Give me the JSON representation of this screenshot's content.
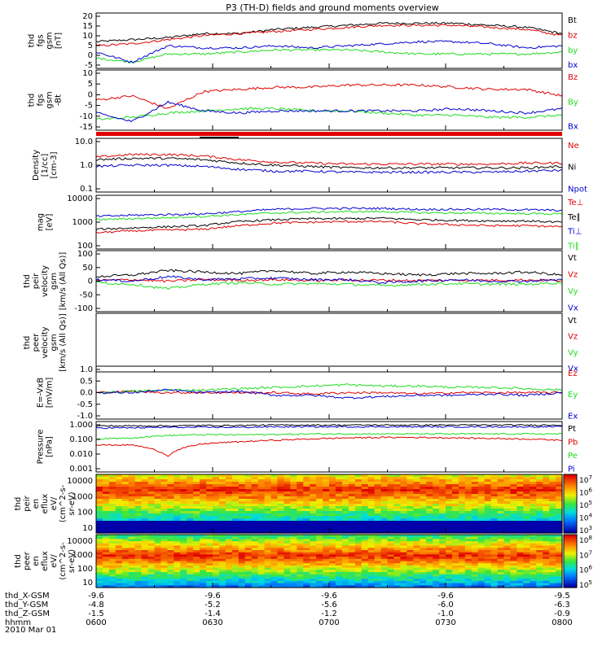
{
  "title": "P3 (TH-D) fields and ground moments overview",
  "date_label": "2010 Mar 01",
  "colors": {
    "black": "#000000",
    "red": "#e00000",
    "green": "#1fdc1f",
    "blue": "#0000d0"
  },
  "chart_data": [
    {
      "type": "line",
      "id": "p1",
      "ylabel": [
        "thd",
        "fgs",
        "gsm",
        "[nT]"
      ],
      "yticks": [
        "20",
        "15",
        "10",
        "5",
        "0",
        "-5"
      ],
      "ylim": [
        -5,
        22
      ],
      "legend": [
        {
          "name": "Bt",
          "color": "black"
        },
        {
          "name": "bz",
          "color": "red"
        },
        {
          "name": "by",
          "color": "green"
        },
        {
          "name": "bx",
          "color": "blue"
        }
      ],
      "series": [
        {
          "name": "Bt",
          "color": "black",
          "values": [
            8,
            9,
            10,
            12,
            12,
            14,
            15,
            16,
            17,
            17,
            17,
            16,
            15,
            12
          ]
        },
        {
          "name": "bz",
          "color": "red",
          "values": [
            6,
            7,
            9,
            11,
            12,
            13,
            14,
            15,
            16,
            16,
            16,
            15,
            14,
            11
          ]
        },
        {
          "name": "by",
          "color": "green",
          "values": [
            0,
            -2,
            2,
            2,
            3,
            4,
            4,
            4,
            3,
            2,
            2,
            2,
            2,
            3
          ]
        },
        {
          "name": "bx",
          "color": "blue",
          "values": [
            3,
            -2,
            6,
            5,
            5,
            6,
            5,
            6,
            7,
            8,
            8,
            7,
            5,
            6
          ]
        }
      ]
    },
    {
      "type": "line",
      "id": "p2",
      "ylabel": [
        "thd",
        "fgs",
        "gsm",
        "-Bt"
      ],
      "yticks": [
        "10",
        "5",
        "0",
        "-5",
        "-10",
        "-15"
      ],
      "ylim": [
        -18,
        10
      ],
      "legend": [
        {
          "name": "Bz",
          "color": "red"
        },
        {
          "name": "By",
          "color": "green"
        },
        {
          "name": "Bx",
          "color": "blue"
        }
      ],
      "series": [
        {
          "name": "Bz",
          "color": "red",
          "values": [
            -4,
            -2,
            -8,
            0,
            1,
            2,
            2,
            3,
            3,
            3,
            2,
            1,
            1,
            -2
          ]
        },
        {
          "name": "By",
          "color": "green",
          "values": [
            -13,
            -12,
            -10,
            -9,
            -8,
            -8,
            -9,
            -9,
            -10,
            -11,
            -11,
            -12,
            -12,
            -11
          ]
        },
        {
          "name": "Bx",
          "color": "blue",
          "values": [
            -10,
            -14,
            -5,
            -9,
            -10,
            -9,
            -9,
            -9,
            -9,
            -9,
            -8,
            -9,
            -10,
            -8
          ]
        }
      ]
    },
    {
      "type": "line",
      "id": "p3",
      "log": true,
      "ylabel": [
        "Density",
        "[1/cc]",
        "[cm-3]"
      ],
      "yticks": [
        "10.0",
        "1.0",
        "0.1"
      ],
      "ylim": [
        0.1,
        10
      ],
      "legend": [
        {
          "name": "Ne",
          "color": "red"
        },
        {
          "name": "Ni",
          "color": "black"
        },
        {
          "name": "Npot",
          "color": "blue"
        }
      ],
      "series": [
        {
          "name": "Ne",
          "color": "red",
          "values": [
            2.0,
            2.5,
            2.5,
            2.2,
            1.6,
            1.3,
            1.2,
            1.1,
            1.1,
            1.1,
            1.1,
            1.1,
            1.2,
            1.2
          ]
        },
        {
          "name": "Ni",
          "color": "black",
          "values": [
            1.6,
            1.8,
            1.8,
            1.6,
            1.2,
            1.0,
            0.9,
            0.8,
            0.8,
            0.8,
            0.8,
            0.8,
            0.8,
            0.9
          ]
        },
        {
          "name": "Npot",
          "color": "blue",
          "values": [
            0.9,
            1.0,
            1.0,
            0.9,
            0.7,
            0.6,
            0.6,
            0.55,
            0.55,
            0.55,
            0.55,
            0.55,
            0.6,
            0.65
          ]
        }
      ]
    },
    {
      "type": "line",
      "id": "p4",
      "log": true,
      "ylabel": [
        "mag",
        "[eV]"
      ],
      "yticks": [
        "10000",
        "1000",
        "100"
      ],
      "ylim": [
        100,
        20000
      ],
      "legend": [
        {
          "name": "Te⊥",
          "color": "red"
        },
        {
          "name": "Te∥",
          "color": "black"
        },
        {
          "name": "Ti⊥",
          "color": "blue"
        },
        {
          "name": "Ti∥",
          "color": "green"
        }
      ],
      "series": [
        {
          "name": "Te⊥",
          "color": "red",
          "values": [
            500,
            600,
            650,
            700,
            1000,
            1300,
            1400,
            1500,
            1500,
            1200,
            1100,
            1000,
            1000,
            900
          ]
        },
        {
          "name": "Te∥",
          "color": "black",
          "values": [
            700,
            800,
            900,
            1000,
            1500,
            1800,
            2000,
            2000,
            2100,
            1800,
            1700,
            1600,
            1600,
            1400
          ]
        },
        {
          "name": "Ti⊥",
          "color": "blue",
          "values": [
            2500,
            2800,
            3000,
            3200,
            4000,
            5000,
            5500,
            5500,
            5500,
            5000,
            5000,
            5000,
            4800,
            4500
          ]
        },
        {
          "name": "Ti∥",
          "color": "green",
          "values": [
            1800,
            2000,
            2200,
            2500,
            3000,
            3500,
            3800,
            4000,
            4000,
            3600,
            3500,
            3400,
            3300,
            3200
          ]
        }
      ]
    },
    {
      "type": "line",
      "id": "p5",
      "ylabel": [
        "thd",
        "peir",
        "velocity",
        "gsm",
        "[km/s (All Qs)]"
      ],
      "yticks": [
        "100",
        "50",
        "0",
        "-50",
        "-100"
      ],
      "ylim": [
        -100,
        100
      ],
      "legend": [
        {
          "name": "Vt",
          "color": "black"
        },
        {
          "name": "Vz",
          "color": "red"
        },
        {
          "name": "Vy",
          "color": "green"
        },
        {
          "name": "Vx",
          "color": "blue"
        }
      ],
      "series": [
        {
          "name": "Vt",
          "color": "black",
          "values": [
            15,
            20,
            35,
            30,
            25,
            35,
            25,
            30,
            25,
            20,
            25,
            25,
            30,
            20
          ]
        },
        {
          "name": "Vz",
          "color": "red",
          "values": [
            2,
            5,
            0,
            5,
            3,
            5,
            2,
            4,
            3,
            2,
            3,
            3,
            4,
            2
          ]
        },
        {
          "name": "Vy",
          "color": "green",
          "values": [
            -5,
            -10,
            -25,
            -10,
            -5,
            -10,
            -8,
            -10,
            -15,
            -10,
            -8,
            -10,
            -10,
            -5
          ]
        },
        {
          "name": "Vx",
          "color": "blue",
          "values": [
            5,
            0,
            15,
            5,
            8,
            10,
            5,
            5,
            -5,
            0,
            5,
            0,
            0,
            5
          ]
        }
      ]
    },
    {
      "type": "line",
      "id": "p6",
      "ylabel": [
        "thd",
        "peer",
        "velocity",
        "gsm",
        "[km/s (All Qs)]"
      ],
      "yticks": [],
      "ylim": [
        -100,
        100
      ],
      "legend": [
        {
          "name": "Vt",
          "color": "black"
        },
        {
          "name": "Vz",
          "color": "red"
        },
        {
          "name": "Vy",
          "color": "green"
        },
        {
          "name": "Vx",
          "color": "blue"
        }
      ],
      "series": []
    },
    {
      "type": "line",
      "id": "p7",
      "ylabel": [
        "E=-VxB",
        "[mV/m]"
      ],
      "yticks": [
        "1.0",
        "0.5",
        "0.0",
        "-0.5",
        "-1.0"
      ],
      "ylim": [
        -1,
        1
      ],
      "legend": [
        {
          "name": "Ez",
          "color": "red"
        },
        {
          "name": "Ey",
          "color": "green"
        },
        {
          "name": "Ex",
          "color": "blue"
        }
      ],
      "series": [
        {
          "name": "Ez",
          "color": "red",
          "values": [
            0,
            0.05,
            0,
            0,
            0,
            0,
            -0.05,
            0,
            0,
            -0.05,
            0,
            0,
            0,
            0
          ]
        },
        {
          "name": "Ey",
          "color": "green",
          "values": [
            0,
            0.05,
            0.1,
            0.1,
            0.15,
            0.2,
            0.25,
            0.3,
            0.25,
            0.25,
            0.2,
            0.2,
            0.15,
            0.1
          ]
        },
        {
          "name": "Ex",
          "color": "blue",
          "values": [
            0,
            0,
            0.1,
            0,
            0.05,
            -0.1,
            -0.1,
            -0.2,
            -0.15,
            -0.1,
            -0.1,
            -0.05,
            -0.1,
            0
          ]
        }
      ]
    },
    {
      "type": "line",
      "id": "p8",
      "log": true,
      "ylabel": [
        "Pressure",
        "[nPa]"
      ],
      "yticks": [
        "1.000",
        "0.100",
        "0.010",
        "0.001"
      ],
      "ylim": [
        0.001,
        1.5
      ],
      "legend": [
        {
          "name": "Pt",
          "color": "black"
        },
        {
          "name": "Pb",
          "color": "red"
        },
        {
          "name": "Pe",
          "color": "green"
        },
        {
          "name": "Pi",
          "color": "blue"
        }
      ],
      "series": [
        {
          "name": "Pt",
          "color": "black",
          "values": [
            0.8,
            0.8,
            0.8,
            0.85,
            0.85,
            0.9,
            0.9,
            0.9,
            0.9,
            0.9,
            0.9,
            0.9,
            0.9,
            0.9
          ]
        },
        {
          "name": "Pb",
          "color": "red",
          "values": [
            0.05,
            0.05,
            0.01,
            0.06,
            0.08,
            0.1,
            0.12,
            0.14,
            0.15,
            0.15,
            0.14,
            0.13,
            0.12,
            0.1
          ]
        },
        {
          "name": "Pe",
          "color": "green",
          "values": [
            0.12,
            0.14,
            0.2,
            0.22,
            0.22,
            0.23,
            0.25,
            0.25,
            0.25,
            0.25,
            0.25,
            0.25,
            0.25,
            0.25
          ]
        },
        {
          "name": "Pi",
          "color": "blue",
          "values": [
            0.6,
            0.6,
            0.65,
            0.65,
            0.65,
            0.7,
            0.7,
            0.7,
            0.7,
            0.7,
            0.7,
            0.7,
            0.7,
            0.7
          ]
        }
      ]
    },
    {
      "type": "heatmap",
      "id": "p9",
      "ylabel": [
        "thd",
        "peir",
        "en",
        "eflux",
        "eV/",
        "(cm^2-s-",
        "sr-eV)"
      ],
      "yticks": [
        "10000",
        "1000",
        "100",
        "10"
      ],
      "colorbar": [
        "10^7",
        "10^6",
        "10^5",
        "10^4",
        "10^3"
      ]
    },
    {
      "type": "heatmap",
      "id": "p10",
      "ylabel": [
        "thd",
        "peer",
        "en",
        "eflux",
        "eV/",
        "(cm^2-s-",
        "sr-eV)"
      ],
      "yticks": [
        "10000",
        "1000",
        "100",
        "10"
      ],
      "colorbar": [
        "10^8",
        "10^7",
        "10^6",
        "10^5"
      ]
    }
  ],
  "x_axis": {
    "row_labels": [
      "thd_X-GSM",
      "thd_Y-GSM",
      "thd_Z-GSM",
      "hhmm"
    ],
    "columns": [
      [
        "-9.6",
        "-4.8",
        "-1.5",
        "0600"
      ],
      [
        "-9.6",
        "-5.2",
        "-1.4",
        "0630"
      ],
      [
        "-9.6",
        "-5.6",
        "-1.2",
        "0700"
      ],
      [
        "-9.6",
        "-6.0",
        "-1.0",
        "0730"
      ],
      [
        "-9.5",
        "-6.3",
        "-0.9",
        "0800"
      ]
    ]
  }
}
